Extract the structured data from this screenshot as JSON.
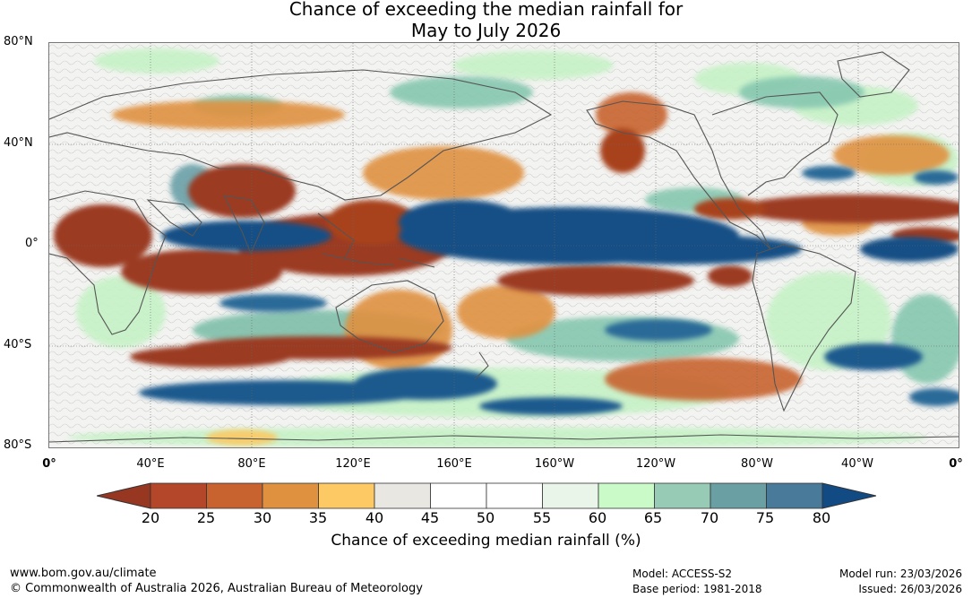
{
  "title": {
    "line1": "Chance of exceeding the median rainfall for",
    "line2": "May to July 2026"
  },
  "map": {
    "lat_labels": [
      "80°N",
      "40°N",
      "0°",
      "40°S",
      "80°S"
    ],
    "lon_labels": [
      "0°",
      "40°E",
      "80°E",
      "120°E",
      "160°E",
      "160°W",
      "120°W",
      "80°W",
      "40°W",
      "0°"
    ],
    "colors": {
      "strong_dry": "#9b3a20",
      "dry": "#c8642e",
      "moderate_dry": "#e0903e",
      "neutral": "#ffffff",
      "moderate_wet": "#a8d8b8",
      "wet": "#6aa0a8",
      "strong_wet": "#134f85",
      "land_outline": "#666666"
    }
  },
  "colorbar": {
    "ticks": [
      "20",
      "25",
      "30",
      "35",
      "40",
      "45",
      "50",
      "55",
      "60",
      "65",
      "70",
      "75",
      "80"
    ],
    "colors": [
      "#b4472a",
      "#c8622f",
      "#e0913f",
      "#fcc964",
      "#e9e7e2",
      "#ffffff",
      "#ffffff",
      "#e9f5e8",
      "#c9fac8",
      "#98cbb6",
      "#6aa0a4",
      "#4a7a99"
    ],
    "low_end_color": "#973721",
    "high_end_color": "#124b84",
    "label": "Chance of exceeding median rainfall (%)"
  },
  "footer": {
    "website": "www.bom.gov.au/climate",
    "copyright": "© Commonwealth of Australia 2026, Australian Bureau of Meteorology",
    "model": "Model: ACCESS-S2",
    "base_period": "Base period: 1981-2018",
    "model_run": "Model run: 23/03/2026",
    "issued": "Issued: 26/03/2026"
  }
}
